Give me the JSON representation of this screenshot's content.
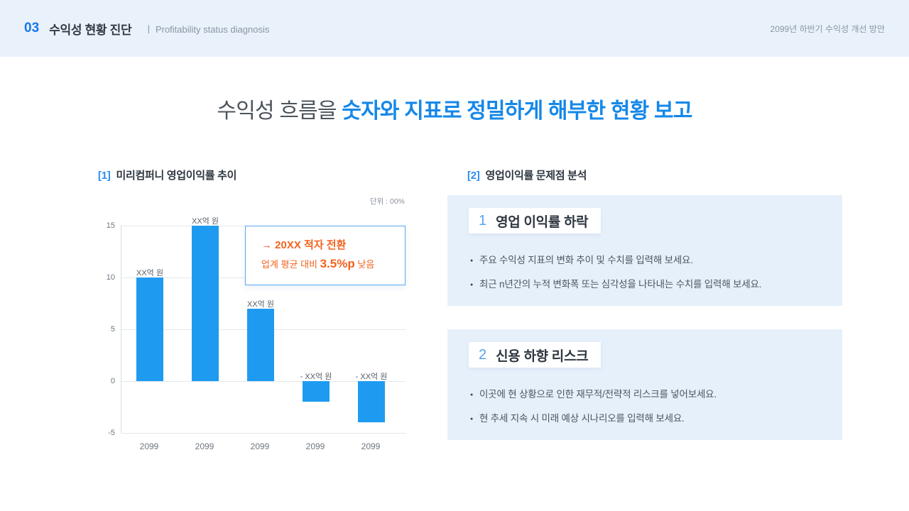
{
  "header": {
    "number": "03",
    "title": "수익성 현황 진단",
    "subtitle": "ㅣ  Profitability status diagnosis",
    "right_note": "2099년 하반기 수익성 개선 방안"
  },
  "main_title": {
    "normal": "수익성 흐름을 ",
    "highlight": "숫자와 지표로 정밀하게 해부한 현황 보고"
  },
  "left_section": {
    "tag": "[1]",
    "label": "미리컴퍼니 영업이익률 추이",
    "callout": {
      "line1": "→ 20XX 적자 전환",
      "line2_prefix": "업계 평균 대비 ",
      "line2_value": "3.5%p",
      "line2_suffix": " 낮음"
    }
  },
  "right_section": {
    "tag": "[2]",
    "label": "영업이익률 문제점 분석",
    "cards": [
      {
        "number": "1",
        "title": "영업 이익률 하락",
        "bullets": [
          "주요 수익성 지표의 변화 추이 및 수치를 입력해 보세요.",
          "최근 n년간의 누적 변화폭 또는 심각성을 나타내는 수치를 입력해 보세요."
        ]
      },
      {
        "number": "2",
        "title": "신용 하향 리스크",
        "bullets": [
          "이곳에 현 상황으로 인한 재무적/전략적 리스크를 넣어보세요.",
          "현 추세 지속 시 미래 예상 시나리오를 입력해 보세요."
        ]
      }
    ]
  },
  "chart_data": {
    "type": "bar",
    "title": "미리컴퍼니 영업이익률 추이",
    "unit_label": "단위 : 00%",
    "categories": [
      "2099",
      "2099",
      "2099",
      "2099",
      "2099"
    ],
    "values": [
      10,
      15,
      7,
      -2,
      -4
    ],
    "bar_labels": [
      "XX억 원",
      "XX억 원",
      "XX억 원",
      "- XX억 원",
      "- XX억 원"
    ],
    "ylim": [
      -5,
      15
    ],
    "yticks": [
      15,
      10,
      5,
      0,
      -5
    ],
    "grid": true,
    "legend": "none",
    "bar_color": "#1e9bf0"
  },
  "colors": {
    "accent_blue": "#1588e8",
    "tag_blue": "#2b8df0",
    "bar_blue": "#1e9bf0",
    "orange": "#f2641e",
    "card_bg": "#e6f0fb",
    "header_bg": "#e9f1fb"
  }
}
